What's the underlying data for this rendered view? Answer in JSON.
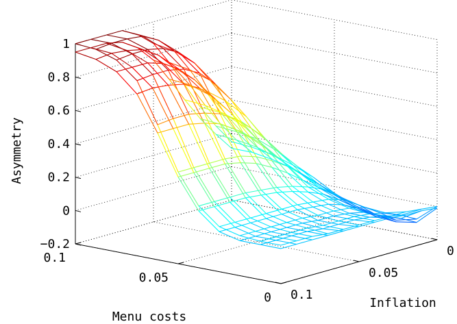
{
  "chart_data": {
    "type": "surface",
    "title": "",
    "xlabel": "Menu costs",
    "ylabel": "Inflation",
    "zlabel": "Asymmetry",
    "xlim": [
      0,
      0.1
    ],
    "ylim": [
      0,
      0.1
    ],
    "zlim": [
      -0.2,
      1
    ],
    "x_ticks": [
      "0",
      "0.05",
      "0.1"
    ],
    "y_ticks": [
      "0",
      "0.05",
      "0.1"
    ],
    "z_ticks": [
      "−0.2",
      "0",
      "0.2",
      "0.4",
      "0.6",
      "0.8",
      "1"
    ],
    "grid": true,
    "colormap": "jet",
    "series": [
      {
        "menu_costs": [
          0,
          0.01,
          0.02,
          0.03,
          0.04,
          0.05,
          0.06,
          0.07,
          0.08,
          0.09,
          0.1
        ],
        "inflation": [
          0,
          0.01,
          0.02,
          0.03,
          0.04,
          0.05,
          0.06,
          0.07,
          0.08,
          0.09,
          0.1
        ],
        "asymmetry": [
          [
            0.0,
            0.01,
            0.02,
            0.02,
            0.02,
            0.02,
            0.02,
            0.02,
            0.03,
            0.03,
            0.03
          ],
          [
            -0.1,
            -0.05,
            -0.01,
            0.01,
            0.02,
            0.02,
            0.02,
            0.03,
            0.03,
            0.03,
            0.03
          ],
          [
            -0.13,
            -0.06,
            0.0,
            0.02,
            0.03,
            0.03,
            0.04,
            0.04,
            0.04,
            0.04,
            0.04
          ],
          [
            -0.12,
            -0.04,
            0.02,
            0.05,
            0.06,
            0.07,
            0.07,
            0.07,
            0.07,
            0.07,
            0.07
          ],
          [
            -0.09,
            -0.01,
            0.06,
            0.1,
            0.13,
            0.15,
            0.16,
            0.17,
            0.17,
            0.17,
            0.17
          ],
          [
            -0.04,
            0.04,
            0.12,
            0.2,
            0.26,
            0.31,
            0.34,
            0.35,
            0.35,
            0.35,
            0.35
          ],
          [
            0.03,
            0.12,
            0.22,
            0.33,
            0.43,
            0.51,
            0.57,
            0.6,
            0.62,
            0.62,
            0.61
          ],
          [
            0.08,
            0.19,
            0.31,
            0.45,
            0.58,
            0.7,
            0.79,
            0.84,
            0.86,
            0.86,
            0.85
          ],
          [
            0.12,
            0.24,
            0.37,
            0.52,
            0.67,
            0.8,
            0.89,
            0.94,
            0.96,
            0.96,
            0.95
          ],
          [
            0.14,
            0.26,
            0.4,
            0.56,
            0.71,
            0.85,
            0.94,
            0.99,
            1.0,
            1.0,
            0.99
          ],
          [
            0.15,
            0.27,
            0.41,
            0.57,
            0.73,
            0.87,
            0.95,
            1.0,
            1.0,
            1.0,
            1.0
          ]
        ]
      },
      {
        "menu_costs": [
          0,
          0.01,
          0.02,
          0.03,
          0.04,
          0.05,
          0.06,
          0.07,
          0.08,
          0.09,
          0.1
        ],
        "inflation": [
          0,
          0.01,
          0.02,
          0.03,
          0.04,
          0.05,
          0.06,
          0.07,
          0.08,
          0.09,
          0.1
        ],
        "asymmetry": [
          [
            -0.01,
            0.0,
            0.0,
            0.01,
            0.01,
            0.01,
            0.01,
            0.01,
            0.01,
            0.01,
            0.01
          ],
          [
            -0.12,
            -0.07,
            -0.03,
            -0.01,
            0.0,
            0.0,
            0.0,
            0.01,
            0.01,
            0.01,
            0.01
          ],
          [
            -0.14,
            -0.08,
            -0.03,
            -0.01,
            0.0,
            0.0,
            0.01,
            0.01,
            0.01,
            0.01,
            0.01
          ],
          [
            -0.13,
            -0.06,
            -0.01,
            0.02,
            0.03,
            0.04,
            0.04,
            0.04,
            0.04,
            0.04,
            0.04
          ],
          [
            -0.1,
            -0.03,
            0.03,
            0.07,
            0.1,
            0.12,
            0.13,
            0.14,
            0.14,
            0.14,
            0.14
          ],
          [
            -0.05,
            0.02,
            0.09,
            0.16,
            0.22,
            0.27,
            0.3,
            0.32,
            0.32,
            0.32,
            0.32
          ],
          [
            0.01,
            0.09,
            0.18,
            0.28,
            0.37,
            0.45,
            0.51,
            0.54,
            0.56,
            0.56,
            0.56
          ],
          [
            0.06,
            0.15,
            0.26,
            0.38,
            0.5,
            0.61,
            0.7,
            0.75,
            0.77,
            0.78,
            0.77
          ],
          [
            0.09,
            0.19,
            0.31,
            0.44,
            0.58,
            0.7,
            0.79,
            0.85,
            0.88,
            0.88,
            0.88
          ],
          [
            0.11,
            0.21,
            0.33,
            0.47,
            0.62,
            0.75,
            0.85,
            0.91,
            0.93,
            0.94,
            0.93
          ],
          [
            0.11,
            0.22,
            0.34,
            0.48,
            0.63,
            0.77,
            0.87,
            0.93,
            0.95,
            0.95,
            0.95
          ]
        ]
      }
    ]
  }
}
